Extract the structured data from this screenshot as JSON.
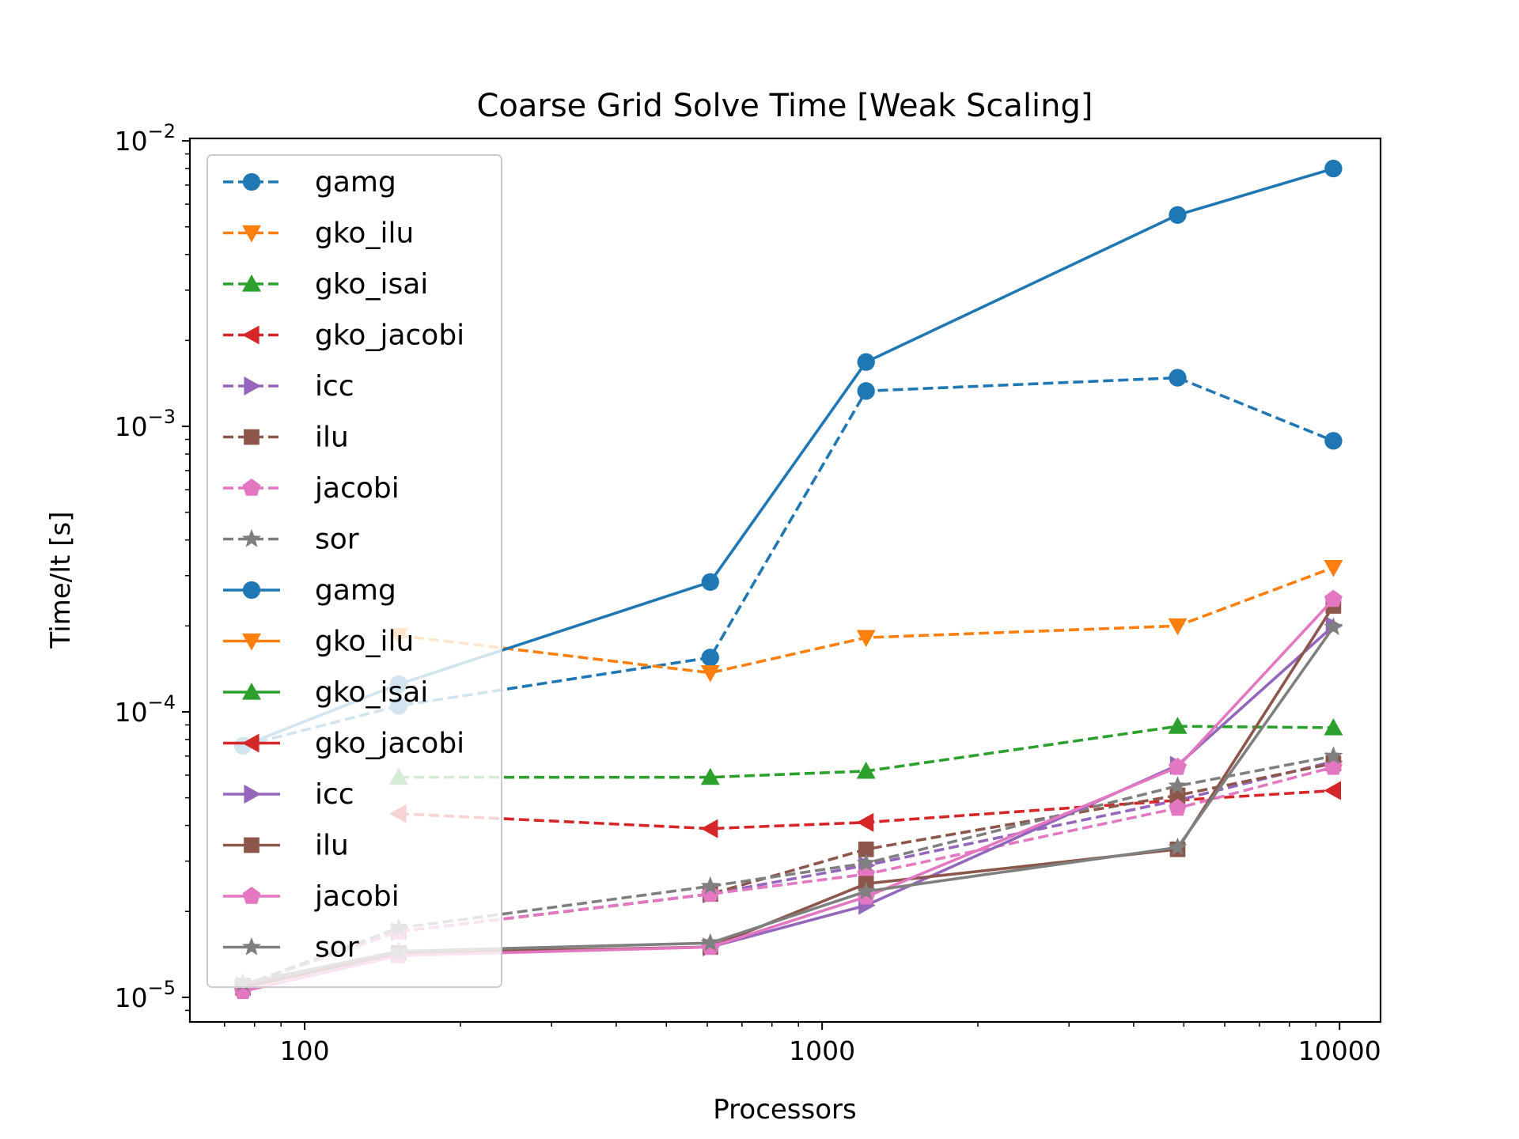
{
  "chart_data": {
    "type": "line",
    "title": "Coarse Grid Solve Time [Weak Scaling]",
    "xlabel": "Processors",
    "ylabel": "Time/It [s]",
    "xscale": "log",
    "yscale": "log",
    "xlim": [
      60,
      12000
    ],
    "ylim": [
      8.2e-06,
      0.0102
    ],
    "x_ticks": [
      {
        "value": 100,
        "label": "100"
      },
      {
        "value": 1000,
        "label": "1000"
      },
      {
        "value": 10000,
        "label": "10000"
      }
    ],
    "y_ticks": [
      {
        "value": 1e-05,
        "mantissa": "10",
        "exponent": "−5"
      },
      {
        "value": 0.0001,
        "mantissa": "10",
        "exponent": "−4"
      },
      {
        "value": 0.001,
        "mantissa": "10",
        "exponent": "−3"
      },
      {
        "value": 0.01,
        "mantissa": "10",
        "exponent": "−2"
      }
    ],
    "grid": false,
    "legend_position": "upper-left",
    "series": [
      {
        "name": "gamg",
        "color": "#1f77b4",
        "linestyle": "dashed",
        "marker": "circle",
        "x": [
          76,
          152,
          608,
          1216,
          4864,
          9728
        ],
        "y": [
          7.6e-05,
          0.000105,
          0.000155,
          0.00133,
          0.00148,
          0.00089
        ]
      },
      {
        "name": "gko_ilu",
        "color": "#ff7f0e",
        "linestyle": "dashed",
        "marker": "triangle-down",
        "x": [
          152,
          608,
          1216,
          4864,
          9728
        ],
        "y": [
          0.000185,
          0.000137,
          0.000182,
          0.0002,
          0.00032
        ]
      },
      {
        "name": "gko_isai",
        "color": "#2ca02c",
        "linestyle": "dashed",
        "marker": "triangle-up",
        "x": [
          152,
          608,
          1216,
          4864,
          9728
        ],
        "y": [
          5.9e-05,
          5.9e-05,
          6.2e-05,
          8.9e-05,
          8.8e-05
        ]
      },
      {
        "name": "gko_jacobi",
        "color": "#d62728",
        "linestyle": "dashed",
        "marker": "triangle-left",
        "x": [
          152,
          608,
          1216,
          4864,
          9728
        ],
        "y": [
          4.4e-05,
          3.9e-05,
          4.1e-05,
          4.9e-05,
          5.3e-05
        ]
      },
      {
        "name": "icc",
        "color": "#9467bd",
        "linestyle": "dashed",
        "marker": "triangle-right",
        "x": [
          76,
          152,
          608,
          1216,
          4864,
          9728
        ],
        "y": [
          1.1e-05,
          1.7e-05,
          2.3e-05,
          2.9e-05,
          4.9e-05,
          6.7e-05
        ]
      },
      {
        "name": "ilu",
        "color": "#8c564b",
        "linestyle": "dashed",
        "marker": "square",
        "x": [
          76,
          152,
          608,
          1216,
          4864,
          9728
        ],
        "y": [
          1.1e-05,
          1.7e-05,
          2.3e-05,
          3.3e-05,
          5.1e-05,
          6.6e-05
        ]
      },
      {
        "name": "jacobi",
        "color": "#e377c2",
        "linestyle": "dashed",
        "marker": "pentagon",
        "x": [
          76,
          152,
          608,
          1216,
          4864,
          9728
        ],
        "y": [
          1.1e-05,
          1.7e-05,
          2.3e-05,
          2.7e-05,
          4.6e-05,
          6.4e-05
        ]
      },
      {
        "name": "sor",
        "color": "#7f7f7f",
        "linestyle": "dashed",
        "marker": "star",
        "x": [
          76,
          152,
          608,
          1216,
          4864,
          9728
        ],
        "y": [
          1.1e-05,
          1.75e-05,
          2.45e-05,
          2.95e-05,
          5.5e-05,
          7e-05
        ]
      },
      {
        "name": "gamg",
        "color": "#1f77b4",
        "linestyle": "solid",
        "marker": "circle",
        "x": [
          76,
          152,
          608,
          1216,
          4864,
          9728
        ],
        "y": [
          7.6e-05,
          0.000125,
          0.000285,
          0.00168,
          0.0055,
          0.008
        ]
      },
      {
        "name": "gko_ilu",
        "color": "#ff7f0e",
        "linestyle": "solid",
        "marker": "triangle-down",
        "x": [],
        "y": []
      },
      {
        "name": "gko_isai",
        "color": "#2ca02c",
        "linestyle": "solid",
        "marker": "triangle-up",
        "x": [],
        "y": []
      },
      {
        "name": "gko_jacobi",
        "color": "#d62728",
        "linestyle": "solid",
        "marker": "triangle-left",
        "x": [],
        "y": []
      },
      {
        "name": "icc",
        "color": "#9467bd",
        "linestyle": "solid",
        "marker": "triangle-right",
        "x": [
          76,
          152,
          608,
          1216,
          4864,
          9728
        ],
        "y": [
          1.1e-05,
          1.42e-05,
          1.5e-05,
          2.1e-05,
          6.5e-05,
          0.0002
        ]
      },
      {
        "name": "ilu",
        "color": "#8c564b",
        "linestyle": "solid",
        "marker": "square",
        "x": [
          76,
          152,
          608,
          1216,
          4864,
          9728
        ],
        "y": [
          1.08e-05,
          1.43e-05,
          1.5e-05,
          2.5e-05,
          3.3e-05,
          0.000235
        ]
      },
      {
        "name": "jacobi",
        "color": "#e377c2",
        "linestyle": "solid",
        "marker": "pentagon",
        "x": [
          76,
          152,
          608,
          1216,
          4864,
          9728
        ],
        "y": [
          1.05e-05,
          1.4e-05,
          1.5e-05,
          2.25e-05,
          6.4e-05,
          0.000248
        ]
      },
      {
        "name": "sor",
        "color": "#7f7f7f",
        "linestyle": "solid",
        "marker": "star",
        "x": [
          76,
          152,
          608,
          1216,
          4864,
          9728
        ],
        "y": [
          1.12e-05,
          1.45e-05,
          1.55e-05,
          2.35e-05,
          3.35e-05,
          0.000198
        ]
      }
    ]
  }
}
